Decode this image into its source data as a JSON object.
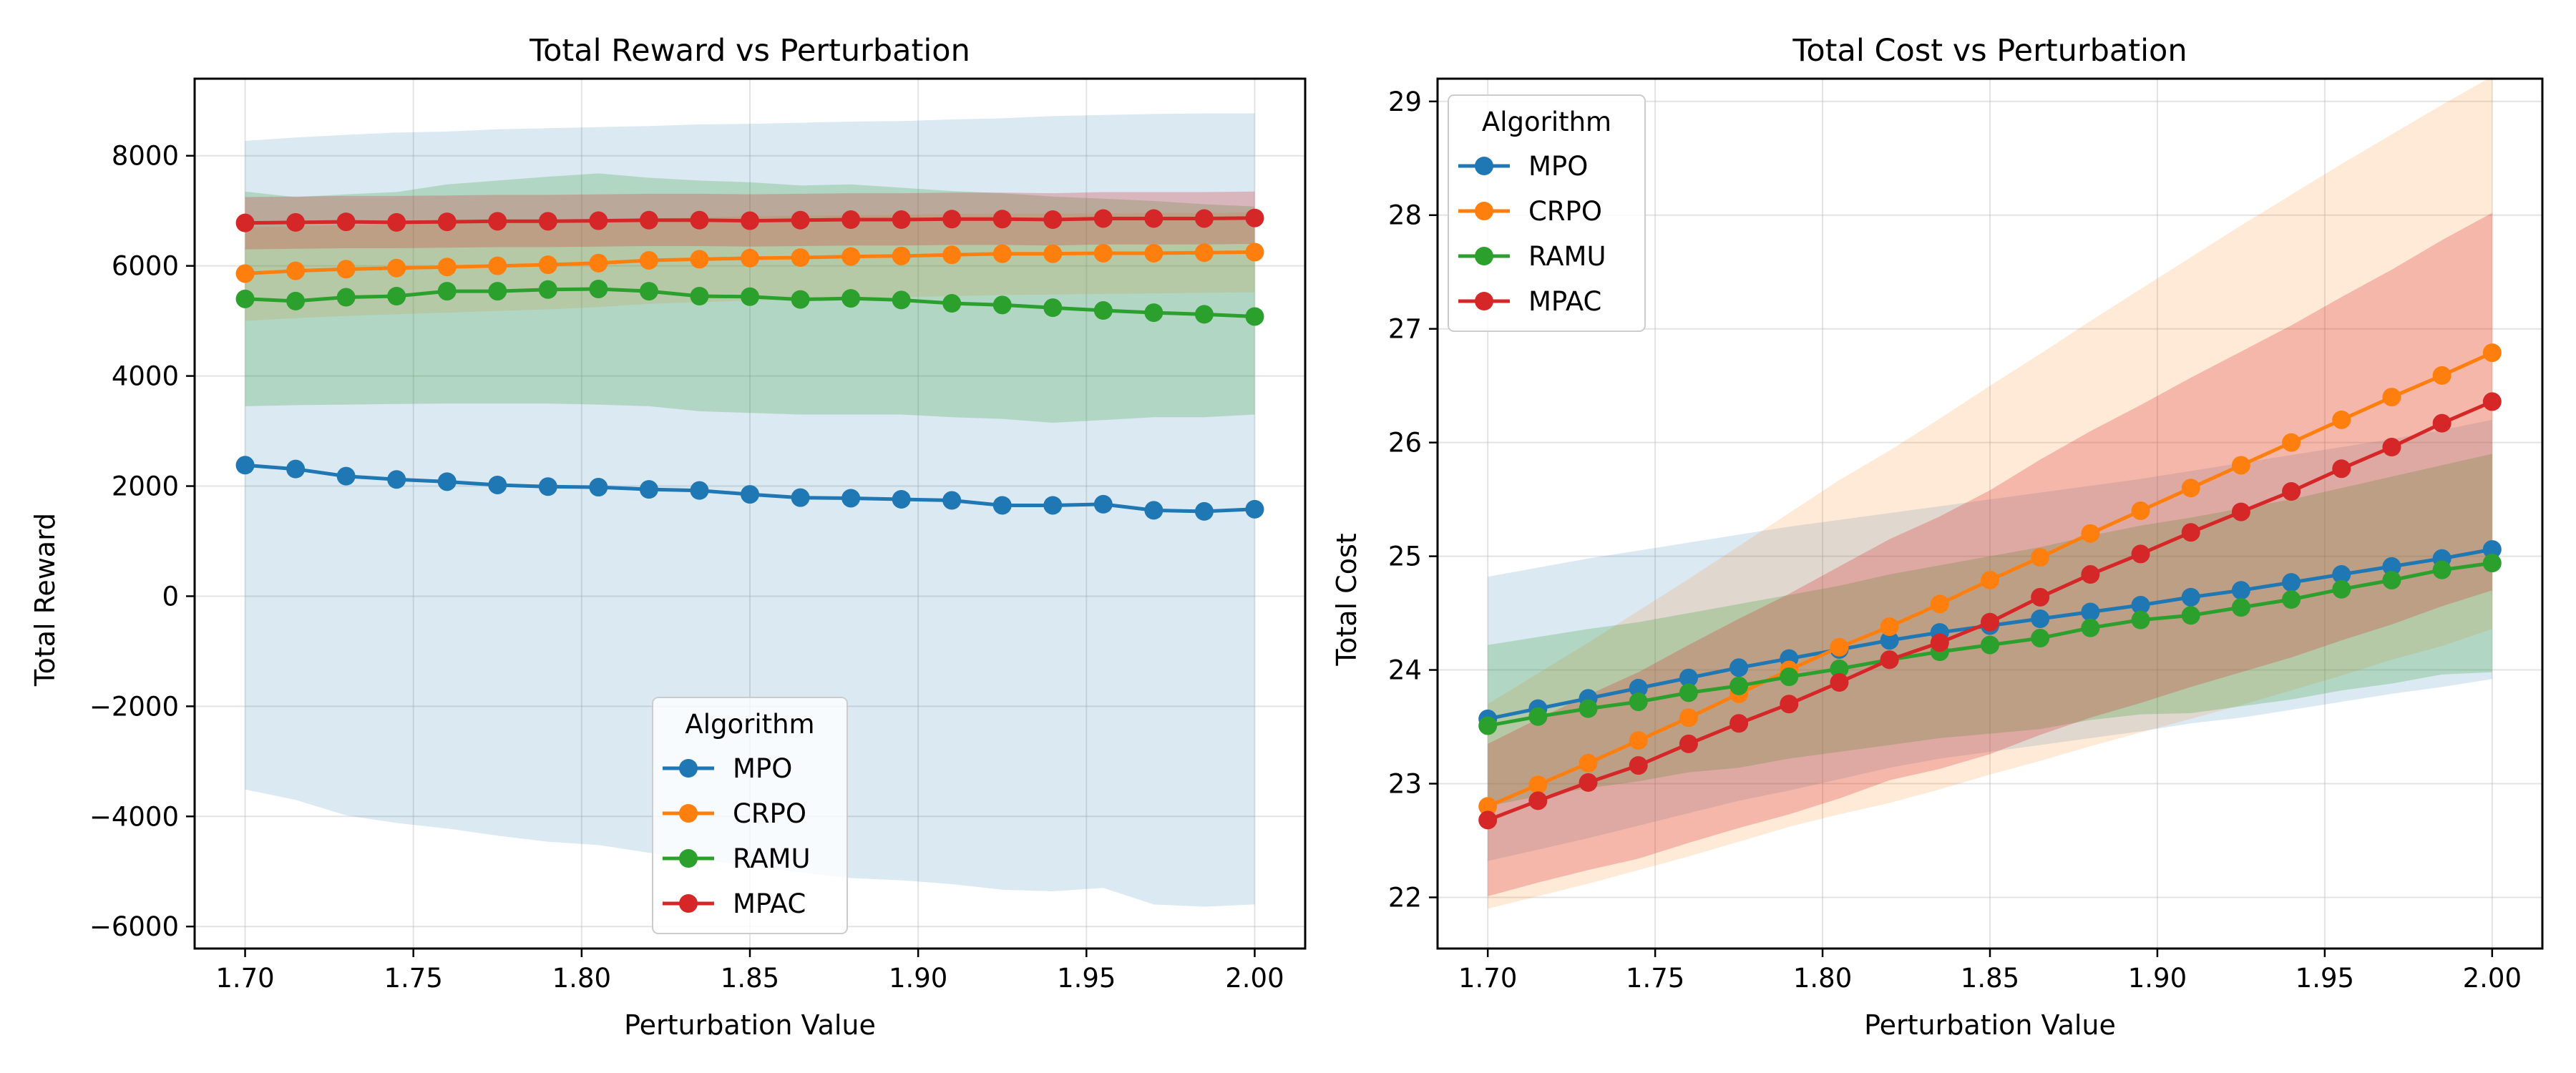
{
  "colors": {
    "MPO": "#1f77b4",
    "CRPO": "#ff7f0e",
    "RAMU": "#2ca02c",
    "MPAC": "#d62728"
  },
  "chart_data": [
    {
      "type": "line",
      "title": "Total Reward vs Perturbation",
      "xlabel": "Perturbation Value",
      "ylabel": "Total Reward",
      "xlim": [
        1.685,
        2.015
      ],
      "ylim": [
        -6400,
        9400
      ],
      "xticks": [
        1.7,
        1.75,
        1.8,
        1.85,
        1.9,
        1.95,
        2.0
      ],
      "xtick_labels": [
        "1.70",
        "1.75",
        "1.80",
        "1.85",
        "1.90",
        "1.95",
        "2.00"
      ],
      "yticks": [
        -6000,
        -4000,
        -2000,
        0,
        2000,
        4000,
        6000,
        8000
      ],
      "ytick_labels": [
        "−6000",
        "−4000",
        "−2000",
        "0",
        "2000",
        "4000",
        "6000",
        "8000"
      ],
      "grid": true,
      "legend_title": "Algorithm",
      "legend_position": "lower-center",
      "x": [
        1.7,
        1.715,
        1.73,
        1.745,
        1.76,
        1.775,
        1.79,
        1.805,
        1.82,
        1.835,
        1.85,
        1.865,
        1.88,
        1.895,
        1.91,
        1.925,
        1.94,
        1.955,
        1.97,
        1.985,
        2.0
      ],
      "series": [
        {
          "name": "MPO",
          "values": [
            2380,
            2310,
            2180,
            2120,
            2080,
            2020,
            1990,
            1980,
            1940,
            1920,
            1850,
            1790,
            1780,
            1760,
            1740,
            1650,
            1650,
            1670,
            1560,
            1540,
            1580
          ],
          "band_upper": [
            8270,
            8330,
            8380,
            8420,
            8440,
            8480,
            8500,
            8520,
            8540,
            8570,
            8580,
            8600,
            8620,
            8630,
            8660,
            8680,
            8720,
            8740,
            8760,
            8770,
            8770
          ],
          "band_lower": [
            -3510,
            -3700,
            -3980,
            -4120,
            -4220,
            -4350,
            -4460,
            -4520,
            -4660,
            -4780,
            -4900,
            -5020,
            -5120,
            -5160,
            -5230,
            -5330,
            -5360,
            -5300,
            -5600,
            -5640,
            -5600
          ]
        },
        {
          "name": "CRPO",
          "values": [
            5860,
            5910,
            5940,
            5960,
            5980,
            6000,
            6020,
            6050,
            6100,
            6120,
            6140,
            6150,
            6170,
            6180,
            6200,
            6220,
            6220,
            6230,
            6230,
            6240,
            6250
          ],
          "band_upper": [
            6700,
            6720,
            6740,
            6760,
            6780,
            6790,
            6810,
            6830,
            6860,
            6880,
            6900,
            6910,
            6920,
            6930,
            6940,
            6950,
            6950,
            6950,
            6960,
            6960,
            6970
          ],
          "band_lower": [
            5000,
            5050,
            5090,
            5120,
            5150,
            5180,
            5210,
            5250,
            5310,
            5340,
            5370,
            5390,
            5410,
            5430,
            5450,
            5470,
            5480,
            5490,
            5500,
            5510,
            5520
          ]
        },
        {
          "name": "RAMU",
          "values": [
            5400,
            5360,
            5430,
            5450,
            5540,
            5540,
            5570,
            5580,
            5540,
            5450,
            5440,
            5390,
            5410,
            5380,
            5320,
            5290,
            5240,
            5190,
            5150,
            5120,
            5080
          ],
          "band_upper": [
            7350,
            7250,
            7300,
            7340,
            7480,
            7550,
            7620,
            7680,
            7600,
            7550,
            7520,
            7460,
            7480,
            7420,
            7360,
            7320,
            7260,
            7220,
            7180,
            7120,
            7080
          ],
          "band_lower": [
            3450,
            3470,
            3480,
            3490,
            3500,
            3500,
            3500,
            3480,
            3450,
            3360,
            3330,
            3300,
            3300,
            3300,
            3250,
            3220,
            3150,
            3200,
            3250,
            3250,
            3300
          ]
        },
        {
          "name": "MPAC",
          "values": [
            6780,
            6790,
            6800,
            6790,
            6800,
            6810,
            6810,
            6820,
            6830,
            6830,
            6820,
            6830,
            6840,
            6840,
            6850,
            6850,
            6840,
            6860,
            6860,
            6860,
            6870
          ],
          "band_upper": [
            7250,
            7260,
            7270,
            7270,
            7280,
            7290,
            7290,
            7300,
            7310,
            7310,
            7300,
            7310,
            7320,
            7320,
            7330,
            7330,
            7320,
            7340,
            7340,
            7340,
            7350
          ],
          "band_lower": [
            6300,
            6310,
            6320,
            6320,
            6330,
            6340,
            6340,
            6350,
            6360,
            6360,
            6350,
            6360,
            6370,
            6370,
            6380,
            6380,
            6370,
            6390,
            6390,
            6390,
            6400
          ]
        }
      ]
    },
    {
      "type": "line",
      "title": "Total Cost vs Perturbation",
      "xlabel": "Perturbation Value",
      "ylabel": "Total Cost",
      "xlim": [
        1.685,
        2.015
      ],
      "ylim": [
        21.55,
        29.2
      ],
      "xticks": [
        1.7,
        1.75,
        1.8,
        1.85,
        1.9,
        1.95,
        2.0
      ],
      "xtick_labels": [
        "1.70",
        "1.75",
        "1.80",
        "1.85",
        "1.90",
        "1.95",
        "2.00"
      ],
      "yticks": [
        22,
        23,
        24,
        25,
        26,
        27,
        28,
        29
      ],
      "ytick_labels": [
        "22",
        "23",
        "24",
        "25",
        "26",
        "27",
        "28",
        "29"
      ],
      "grid": true,
      "legend_title": "Algorithm",
      "legend_position": "upper-left",
      "x": [
        1.7,
        1.715,
        1.73,
        1.745,
        1.76,
        1.775,
        1.79,
        1.805,
        1.82,
        1.835,
        1.85,
        1.865,
        1.88,
        1.895,
        1.91,
        1.925,
        1.94,
        1.955,
        1.97,
        1.985,
        2.0
      ],
      "series": [
        {
          "name": "MPO",
          "values": [
            23.57,
            23.66,
            23.75,
            23.84,
            23.93,
            24.02,
            24.1,
            24.18,
            24.26,
            24.33,
            24.39,
            24.45,
            24.51,
            24.57,
            24.64,
            24.7,
            24.77,
            24.84,
            24.91,
            24.98,
            25.06
          ],
          "band_upper": [
            24.82,
            24.9,
            24.98,
            25.05,
            25.12,
            25.19,
            25.26,
            25.32,
            25.38,
            25.44,
            25.5,
            25.56,
            25.62,
            25.68,
            25.75,
            25.82,
            25.89,
            25.96,
            26.03,
            26.11,
            26.2
          ],
          "band_lower": [
            22.32,
            22.42,
            22.52,
            22.63,
            22.74,
            22.85,
            22.94,
            23.04,
            23.14,
            23.22,
            23.28,
            23.34,
            23.4,
            23.46,
            23.53,
            23.58,
            23.65,
            23.72,
            23.79,
            23.85,
            23.92
          ]
        },
        {
          "name": "CRPO",
          "values": [
            22.8,
            22.99,
            23.18,
            23.38,
            23.58,
            23.79,
            24.0,
            24.2,
            24.38,
            24.58,
            24.79,
            24.99,
            25.2,
            25.4,
            25.6,
            25.8,
            26.0,
            26.2,
            26.4,
            26.59,
            26.79
          ],
          "band_upper": [
            23.7,
            23.97,
            24.24,
            24.52,
            24.8,
            25.09,
            25.38,
            25.67,
            25.93,
            26.21,
            26.5,
            26.78,
            27.07,
            27.35,
            27.63,
            27.91,
            28.18,
            28.45,
            28.71,
            28.97,
            29.22
          ],
          "band_lower": [
            21.9,
            22.01,
            22.12,
            22.24,
            22.36,
            22.49,
            22.62,
            22.73,
            22.83,
            22.95,
            23.08,
            23.2,
            23.33,
            23.45,
            23.57,
            23.69,
            23.82,
            23.95,
            24.09,
            24.21,
            24.36
          ]
        },
        {
          "name": "RAMU",
          "values": [
            23.51,
            23.59,
            23.66,
            23.72,
            23.8,
            23.86,
            23.94,
            24.01,
            24.09,
            24.16,
            24.22,
            24.28,
            24.37,
            24.44,
            24.48,
            24.55,
            24.62,
            24.71,
            24.79,
            24.88,
            24.94
          ],
          "band_upper": [
            24.22,
            24.29,
            24.36,
            24.42,
            24.5,
            24.58,
            24.66,
            24.74,
            24.84,
            24.92,
            25.0,
            25.08,
            25.18,
            25.27,
            25.34,
            25.42,
            25.5,
            25.6,
            25.7,
            25.8,
            25.9
          ],
          "band_lower": [
            22.8,
            22.89,
            22.96,
            23.02,
            23.1,
            23.14,
            23.22,
            23.28,
            23.34,
            23.4,
            23.44,
            23.48,
            23.56,
            23.61,
            23.62,
            23.68,
            23.74,
            23.82,
            23.88,
            23.96,
            23.98
          ]
        },
        {
          "name": "MPAC",
          "values": [
            22.68,
            22.85,
            23.01,
            23.16,
            23.35,
            23.53,
            23.7,
            23.89,
            24.09,
            24.24,
            24.42,
            24.64,
            24.84,
            25.02,
            25.21,
            25.39,
            25.57,
            25.77,
            25.96,
            26.17,
            26.36
          ],
          "band_upper": [
            23.35,
            23.57,
            23.78,
            23.98,
            24.22,
            24.45,
            24.67,
            24.91,
            25.15,
            25.35,
            25.58,
            25.85,
            26.1,
            26.33,
            26.57,
            26.8,
            27.03,
            27.28,
            27.52,
            27.78,
            28.02
          ],
          "band_lower": [
            22.01,
            22.13,
            22.24,
            22.34,
            22.48,
            22.61,
            22.73,
            22.87,
            23.03,
            23.13,
            23.26,
            23.43,
            23.58,
            23.71,
            23.85,
            23.98,
            24.11,
            24.26,
            24.4,
            24.56,
            24.7
          ]
        }
      ]
    }
  ]
}
